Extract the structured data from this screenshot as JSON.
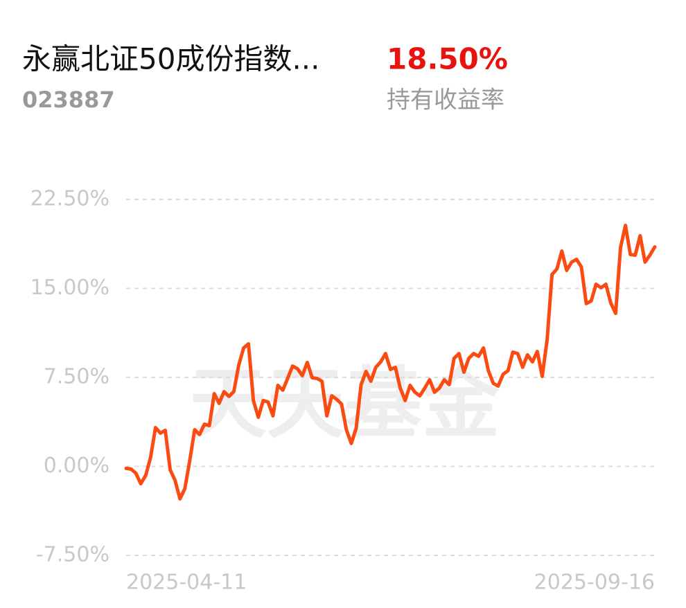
{
  "header": {
    "title": "永赢北证50成份指数...",
    "code": "023887",
    "return_value": "18.50%",
    "return_label": "持有收益率"
  },
  "chart_data": {
    "type": "line",
    "watermark": "天天基金",
    "categories": [
      "2025-04-11",
      null,
      null,
      null,
      null,
      null,
      null,
      null,
      null,
      null,
      null,
      null,
      null,
      null,
      null,
      null,
      null,
      null,
      null,
      null,
      null,
      null,
      null,
      null,
      null,
      null,
      null,
      null,
      null,
      null,
      null,
      null,
      null,
      null,
      null,
      null,
      null,
      null,
      null,
      null,
      null,
      null,
      null,
      null,
      null,
      null,
      null,
      null,
      null,
      null,
      null,
      null,
      null,
      null,
      null,
      null,
      null,
      null,
      null,
      null,
      null,
      null,
      null,
      null,
      null,
      null,
      null,
      null,
      null,
      null,
      null,
      null,
      null,
      null,
      null,
      null,
      null,
      null,
      null,
      null,
      null,
      null,
      null,
      null,
      null,
      null,
      null,
      null,
      null,
      null,
      null,
      null,
      null,
      null,
      null,
      null,
      null,
      null,
      null,
      null,
      null,
      null,
      null,
      null,
      null,
      null,
      null,
      null,
      "2025-09-16"
    ],
    "values": [
      -0.17,
      -0.23,
      -0.58,
      -1.46,
      -0.76,
      0.76,
      3.27,
      2.8,
      3.04,
      -0.29,
      -1.17,
      -2.74,
      -1.87,
      0.47,
      3.09,
      2.69,
      3.56,
      3.44,
      6.13,
      5.31,
      6.3,
      5.9,
      6.3,
      8.52,
      9.98,
      10.33,
      5.55,
      4.14,
      5.55,
      5.43,
      4.26,
      6.83,
      6.42,
      7.41,
      8.46,
      8.23,
      7.65,
      8.76,
      7.47,
      7.41,
      7.18,
      4.26,
      5.95,
      5.66,
      5.25,
      3.09,
      1.93,
      3.21,
      6.89,
      8.0,
      7.18,
      8.35,
      8.81,
      9.51,
      8.17,
      8.35,
      6.6,
      5.55,
      6.83,
      6.25,
      5.95,
      6.6,
      7.3,
      6.25,
      6.6,
      7.3,
      6.89,
      9.11,
      9.51,
      7.94,
      9.11,
      9.51,
      9.28,
      9.98,
      8.06,
      7.0,
      6.77,
      7.76,
      8.06,
      9.63,
      9.51,
      8.35,
      9.4,
      8.81,
      9.69,
      7.59,
      10.68,
      16.17,
      16.64,
      18.15,
      16.52,
      17.22,
      17.45,
      16.81,
      13.72,
      13.95,
      15.35,
      15.06,
      15.35,
      13.78,
      12.9,
      18.44,
      20.31,
      17.86,
      17.8,
      19.44,
      17.22,
      17.8,
      18.5
    ],
    "color": "#fa4c12",
    "ylim": [
      -7.5,
      22.5
    ],
    "yticks": [
      {
        "value": -7.5,
        "label": "-7.50%"
      },
      {
        "value": 0,
        "label": "0.00%"
      },
      {
        "value": 7.5,
        "label": "7.50%"
      },
      {
        "value": 15,
        "label": "15.00%"
      },
      {
        "value": 22.5,
        "label": "22.50%"
      }
    ],
    "grid": true
  }
}
